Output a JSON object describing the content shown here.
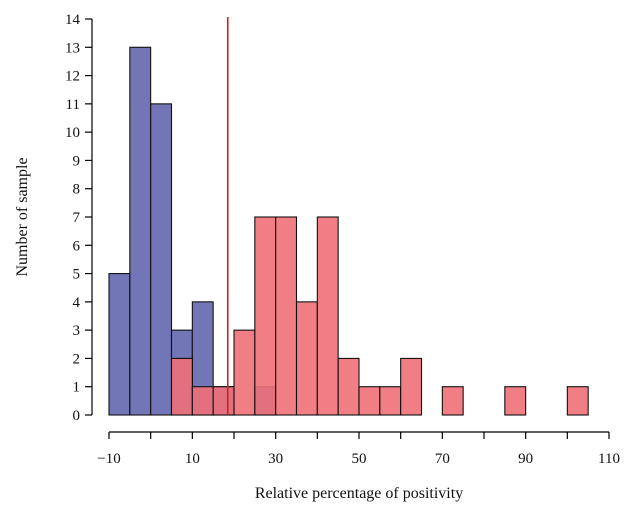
{
  "chart_data": {
    "type": "bar",
    "subtype": "overlaid-histogram",
    "xlabel": "Relative percentage of positivity",
    "ylabel": "Number of sample",
    "xlim": [
      -10,
      110
    ],
    "ylim": [
      0,
      14
    ],
    "x_ticks": [
      -10,
      10,
      30,
      50,
      70,
      90,
      110
    ],
    "x_tick_labels": [
      "−10",
      "10",
      "30",
      "50",
      "70",
      "90",
      "110"
    ],
    "x_minor_ticks": [
      0,
      20,
      40,
      60,
      80,
      100
    ],
    "y_ticks": [
      0,
      1,
      2,
      3,
      4,
      5,
      6,
      7,
      8,
      9,
      10,
      11,
      12,
      13,
      14
    ],
    "bin_width": 5,
    "threshold_line": {
      "x": 18.5,
      "color": "#cc2222"
    },
    "grid": false,
    "legend": "none",
    "series": [
      {
        "color": "#5e63ad",
        "opacity": 0.88,
        "bins": [
          {
            "start": -10,
            "count": 5
          },
          {
            "start": -5,
            "count": 13
          },
          {
            "start": 0,
            "count": 11
          },
          {
            "start": 5,
            "count": 3
          },
          {
            "start": 10,
            "count": 4
          },
          {
            "start": 15,
            "count": 1
          },
          {
            "start": 25,
            "count": 1
          }
        ]
      },
      {
        "color": "#f07078",
        "opacity": 0.9,
        "bins": [
          {
            "start": 5,
            "count": 2
          },
          {
            "start": 10,
            "count": 1
          },
          {
            "start": 15,
            "count": 1
          },
          {
            "start": 20,
            "count": 3
          },
          {
            "start": 25,
            "count": 7
          },
          {
            "start": 30,
            "count": 7
          },
          {
            "start": 35,
            "count": 4
          },
          {
            "start": 40,
            "count": 7
          },
          {
            "start": 45,
            "count": 2
          },
          {
            "start": 50,
            "count": 1
          },
          {
            "start": 55,
            "count": 1
          },
          {
            "start": 60,
            "count": 2
          },
          {
            "start": 70,
            "count": 1
          },
          {
            "start": 85,
            "count": 1
          },
          {
            "start": 100,
            "count": 1
          }
        ]
      }
    ]
  }
}
